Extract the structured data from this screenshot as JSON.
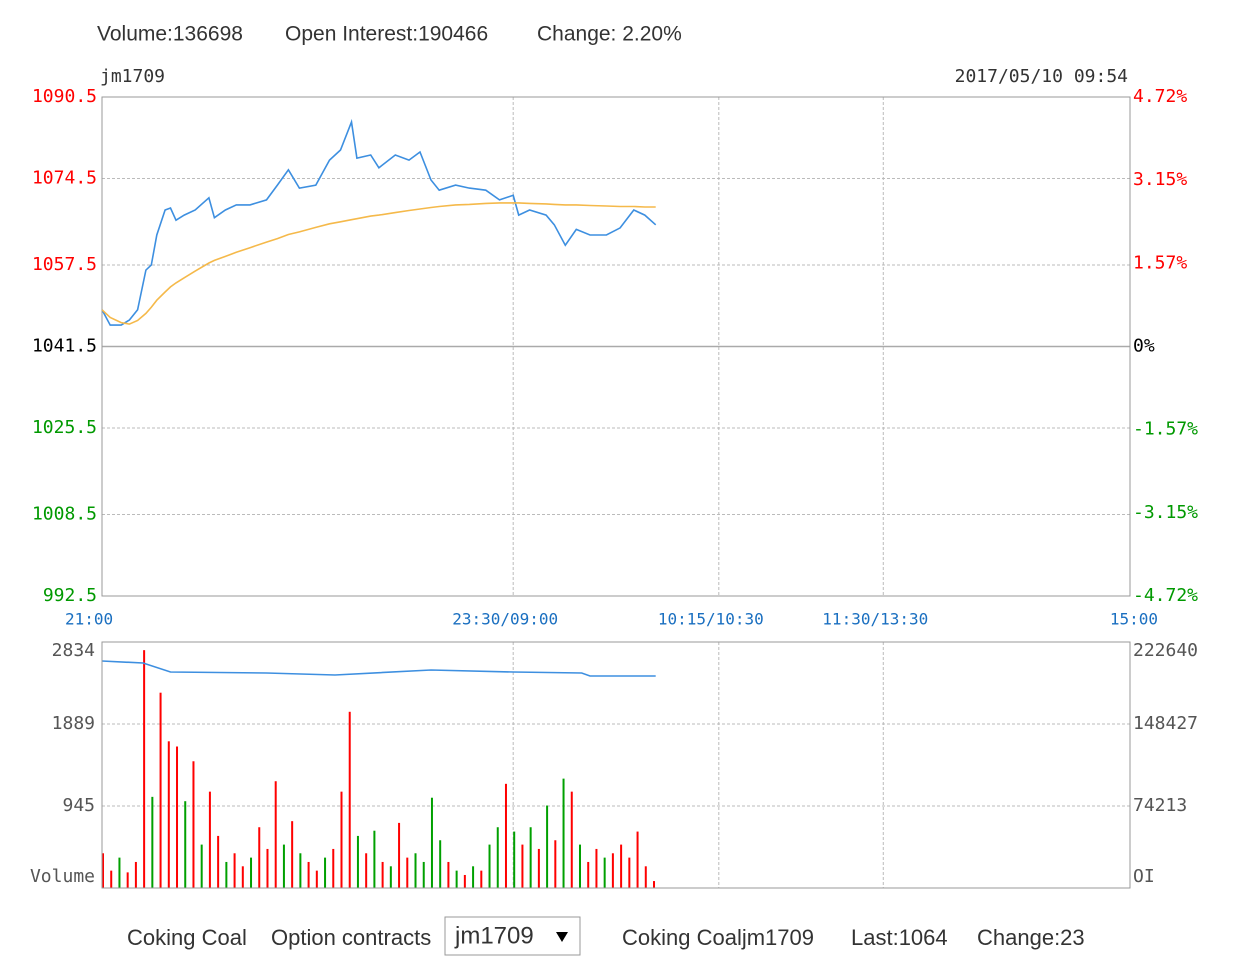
{
  "header": {
    "volume": "Volume:136698",
    "open_interest": "Open Interest:190466",
    "change": "Change: 2.20%"
  },
  "chart_data": [
    {
      "type": "line",
      "title": "jm1709",
      "subtitle": "2017/05/10 09:54",
      "x": [
        0,
        3,
        7,
        10,
        13,
        16,
        18,
        20,
        23,
        25,
        27,
        30,
        34,
        39,
        41,
        45,
        49,
        54,
        60,
        64,
        68,
        72,
        78,
        83,
        87,
        91,
        93,
        98,
        101,
        107,
        112,
        116,
        120,
        123,
        129,
        134,
        140,
        145,
        150,
        152,
        156,
        162,
        165,
        169,
        173,
        178,
        184,
        189,
        194,
        198,
        202
      ],
      "series": [
        {
          "color": "#3d8fe0",
          "values": [
            1048.7,
            1045.7,
            1045.7,
            1046.7,
            1048.7,
            1056.5,
            1057.5,
            1063.4,
            1068.3,
            1068.7,
            1066.3,
            1067.3,
            1068.3,
            1070.7,
            1066.8,
            1068.3,
            1069.3,
            1069.3,
            1070.3,
            1073.2,
            1076.2,
            1072.6,
            1073.2,
            1078.1,
            1080.1,
            1085.6,
            1078.5,
            1079.1,
            1076.6,
            1079.1,
            1078.1,
            1079.7,
            1074.2,
            1072.2,
            1073.2,
            1072.6,
            1072.2,
            1070.3,
            1071.2,
            1067.3,
            1068.3,
            1067.3,
            1065.4,
            1061.4,
            1064.5,
            1063.4,
            1063.4,
            1064.8,
            1068.3,
            1067.3,
            1065.4
          ]
        },
        {
          "color": "#f5b94a",
          "values": [
            1048.7,
            1047.2,
            1046.2,
            1045.9,
            1046.6,
            1048.0,
            1049.2,
            1050.6,
            1052.2,
            1053.2,
            1054.0,
            1055.0,
            1056.3,
            1057.9,
            1058.4,
            1059.2,
            1060.0,
            1060.9,
            1062.0,
            1062.7,
            1063.5,
            1064.0,
            1064.9,
            1065.6,
            1066.0,
            1066.4,
            1066.6,
            1067.1,
            1067.3,
            1067.8,
            1068.2,
            1068.5,
            1068.8,
            1069.0,
            1069.3,
            1069.4,
            1069.6,
            1069.7,
            1069.7,
            1069.7,
            1069.6,
            1069.5,
            1069.4,
            1069.3,
            1069.3,
            1069.2,
            1069.1,
            1069.0,
            1069.0,
            1068.9,
            1068.9
          ]
        }
      ],
      "xlim": [
        0,
        375
      ],
      "xticks": [
        {
          "value": 0,
          "label": "21:00"
        },
        {
          "value": 150,
          "label": "23:30/09:00"
        },
        {
          "value": 225,
          "label": "10:15/10:30"
        },
        {
          "value": 285,
          "label": "11:30/13:30"
        },
        {
          "value": 375,
          "label": "15:00"
        }
      ],
      "ylim": [
        992.5,
        1090.5
      ],
      "yticks": [
        1090.5,
        1074.5,
        1057.5,
        1041.5,
        1025.5,
        1008.5,
        992.5
      ],
      "y2lim": [
        -4.72,
        4.72
      ],
      "y2ticks": [
        {
          "value": 4.72,
          "label": "4.72%"
        },
        {
          "value": 3.15,
          "label": "3.15%"
        },
        {
          "value": 1.57,
          "label": "1.57%"
        },
        {
          "value": 0,
          "label": "0%"
        },
        {
          "value": -1.57,
          "label": "-1.57%"
        },
        {
          "value": -3.15,
          "label": "-3.15%"
        },
        {
          "value": -4.72,
          "label": "-4.72%"
        }
      ],
      "grid": true
    },
    {
      "type": "bar",
      "y_label": "Volume",
      "y2_label": "OI",
      "series": [
        {
          "x": [
            0,
            3,
            6,
            9,
            12,
            15,
            18,
            21,
            24,
            27,
            30,
            33,
            36,
            39,
            42,
            45,
            48,
            51,
            54,
            57,
            60,
            63,
            66,
            69,
            72,
            75,
            78,
            81,
            84,
            87,
            90,
            93,
            96,
            99,
            102,
            105,
            108,
            111,
            114,
            117,
            120,
            123,
            126,
            129,
            132,
            135,
            138,
            141,
            144,
            147,
            150,
            153,
            156,
            159,
            162,
            165,
            168,
            171,
            174,
            177,
            180,
            183,
            186,
            189,
            192,
            195,
            198,
            201
          ],
          "values": [
            400,
            200,
            350,
            180,
            300,
            2740,
            1050,
            2250,
            1690,
            1630,
            1000,
            1460,
            500,
            1110,
            600,
            300,
            400,
            250,
            350,
            700,
            450,
            1230,
            500,
            770,
            400,
            300,
            200,
            350,
            450,
            1110,
            2030,
            600,
            400,
            660,
            300,
            250,
            750,
            350,
            400,
            300,
            1040,
            550,
            300,
            200,
            150,
            250,
            200,
            500,
            700,
            1200,
            650,
            500,
            700,
            450,
            950,
            550,
            1260,
            1110,
            500,
            300,
            450,
            350,
            400,
            500,
            350,
            650,
            250,
            80
          ],
          "colors": [
            "#ff0000",
            "#ff0000",
            "#00a000",
            "#ff0000",
            "#ff0000",
            "#ff0000",
            "#00a000",
            "#ff0000",
            "#ff0000",
            "#ff0000",
            "#00a000",
            "#ff0000",
            "#00a000",
            "#ff0000",
            "#ff0000",
            "#00a000",
            "#ff0000",
            "#ff0000",
            "#00a000",
            "#ff0000",
            "#ff0000",
            "#ff0000",
            "#00a000",
            "#ff0000",
            "#00a000",
            "#ff0000",
            "#ff0000",
            "#00a000",
            "#ff0000",
            "#ff0000",
            "#ff0000",
            "#00a000",
            "#ff0000",
            "#00a000",
            "#ff0000",
            "#00a000",
            "#ff0000",
            "#ff0000",
            "#00a000",
            "#00a000",
            "#00a000",
            "#00a000",
            "#ff0000",
            "#00a000",
            "#ff0000",
            "#00a000",
            "#ff0000",
            "#00a000",
            "#00a000",
            "#ff0000",
            "#00a000",
            "#ff0000",
            "#00a000",
            "#ff0000",
            "#00a000",
            "#ff0000",
            "#00a000",
            "#ff0000",
            "#00a000",
            "#ff0000",
            "#ff0000",
            "#00a000",
            "#ff0000",
            "#ff0000",
            "#ff0000",
            "#ff0000",
            "#ff0000",
            "#ff0000"
          ]
        },
        {
          "x": [
            0,
            15,
            25,
            60,
            85,
            120,
            150,
            175,
            178,
            202
          ],
          "values": [
            205400,
            203600,
            195500,
            194600,
            192800,
            197300,
            195500,
            194600,
            191900,
            191900
          ],
          "axis": "y2",
          "color": "#3d8fe0"
        }
      ],
      "xlim": [
        0,
        375
      ],
      "ylim": [
        0,
        2834
      ],
      "yticks": [
        945,
        1889,
        2834
      ],
      "y2lim": [
        0,
        222640
      ],
      "y2ticks": [
        74213,
        148427,
        222640
      ],
      "grid": true
    }
  ],
  "footer": {
    "product": "Coking Coal",
    "option_label": "Option contracts",
    "selected": "jm1709",
    "contract": "Coking Coaljm1709",
    "last": "Last:1064",
    "change": "Change:23"
  }
}
